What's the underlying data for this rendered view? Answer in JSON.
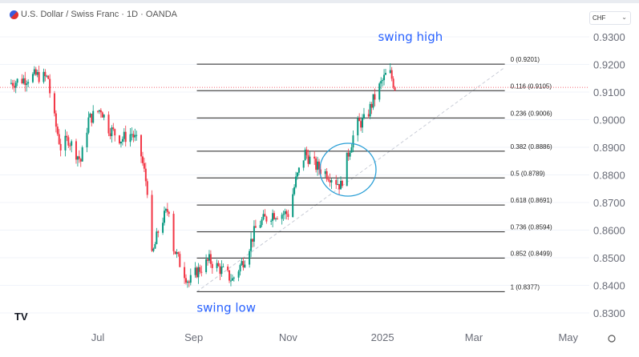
{
  "header": {
    "title": "U.S. Dollar / Swiss Franc · 1D · OANDA",
    "currency": "CHF",
    "currency_chevron": "⌄"
  },
  "colors": {
    "up": "#089981",
    "down": "#f23645",
    "annotation": "#2962ff",
    "circle": "#2a9fd6"
  },
  "chart_data": {
    "type": "candlestick",
    "title": "U.S. Dollar / Swiss Franc · 1D · OANDA",
    "ylim": [
      0.8265,
      0.9335
    ],
    "y_ticks": [
      "0.9300",
      "0.9200",
      "0.9100",
      "0.9000",
      "0.8900",
      "0.8800",
      "0.8700",
      "0.8600",
      "0.8500",
      "0.8400",
      "0.8300"
    ],
    "y_tick_values": [
      0.93,
      0.92,
      0.91,
      0.9,
      0.89,
      0.88,
      0.87,
      0.86,
      0.85,
      0.84,
      0.83
    ],
    "x_ticks": [
      {
        "label": "Jul",
        "day": 0
      },
      {
        "label": "Sep",
        "day": 62
      },
      {
        "label": "Nov",
        "day": 123
      },
      {
        "label": "2025",
        "day": 184
      },
      {
        "label": "Mar",
        "day": 243
      },
      {
        "label": "May",
        "day": 304
      }
    ],
    "x_range_days": [
      -63,
      318
    ],
    "price_path_note_day_offset_from_Jul1": "waypoints",
    "waypoints": [
      [
        -58,
        0.913
      ],
      [
        -40,
        0.916
      ],
      [
        -32,
        0.915
      ],
      [
        -30,
        0.905
      ],
      [
        -24,
        0.89
      ],
      [
        -19,
        0.893
      ],
      [
        -11,
        0.885
      ],
      [
        -6,
        0.9
      ],
      [
        2,
        0.904
      ],
      [
        7,
        0.897
      ],
      [
        15,
        0.893
      ],
      [
        22,
        0.895
      ],
      [
        27,
        0.89
      ],
      [
        33,
        0.872
      ],
      [
        35,
        0.85
      ],
      [
        40,
        0.862
      ],
      [
        46,
        0.868
      ],
      [
        48,
        0.855
      ],
      [
        53,
        0.848
      ],
      [
        59,
        0.841
      ],
      [
        64,
        0.845
      ],
      [
        72,
        0.849
      ],
      [
        79,
        0.846
      ],
      [
        87,
        0.842
      ],
      [
        95,
        0.85
      ],
      [
        103,
        0.862
      ],
      [
        113,
        0.866
      ],
      [
        123,
        0.866
      ],
      [
        128,
        0.878
      ],
      [
        134,
        0.888
      ],
      [
        139,
        0.884
      ],
      [
        144,
        0.882
      ],
      [
        152,
        0.879
      ],
      [
        157,
        0.876
      ],
      [
        162,
        0.888
      ],
      [
        167,
        0.898
      ],
      [
        173,
        0.9
      ],
      [
        178,
        0.907
      ],
      [
        183,
        0.913
      ],
      [
        188,
        0.918
      ],
      [
        192,
        0.912
      ]
    ],
    "current_price": 0.9117,
    "fib_levels": [
      {
        "ratio": "0",
        "price": 0.9201,
        "label": "0 (0.9201)"
      },
      {
        "ratio": "0.116",
        "price": 0.9105,
        "label": "0.116 (0.9105)"
      },
      {
        "ratio": "0.236",
        "price": 0.9006,
        "label": "0.236 (0.9006)"
      },
      {
        "ratio": "0.382",
        "price": 0.8886,
        "label": "0.382 (0.8886)"
      },
      {
        "ratio": "0.5",
        "price": 0.8789,
        "label": "0.5 (0.8789)"
      },
      {
        "ratio": "0.618",
        "price": 0.8691,
        "label": "0.618 (0.8691)"
      },
      {
        "ratio": "0.736",
        "price": 0.8594,
        "label": "0.736 (0.8594)"
      },
      {
        "ratio": "0.852",
        "price": 0.8499,
        "label": "0.852 (0.8499)"
      },
      {
        "ratio": "1",
        "price": 0.8377,
        "label": "1 (0.8377)"
      }
    ],
    "fib_day_range": [
      64,
      263
    ],
    "annotations": [
      {
        "text": "swing high",
        "day": 202,
        "price": 0.9285
      },
      {
        "text": "swing low",
        "day": 83,
        "price": 0.8305
      }
    ]
  },
  "footer": {
    "logo": "TV"
  }
}
